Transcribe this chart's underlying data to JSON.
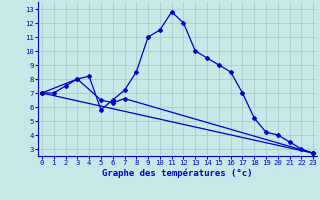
{
  "title": "Graphe des températures (°c)",
  "bg_color": "#c8e8e8",
  "grid_color": "#a8cccc",
  "line_color": "#0000cc",
  "x_ticks": [
    0,
    1,
    2,
    3,
    4,
    5,
    6,
    7,
    8,
    9,
    10,
    11,
    12,
    13,
    14,
    15,
    16,
    17,
    18,
    19,
    20,
    21,
    22,
    23
  ],
  "y_ticks": [
    3,
    4,
    5,
    6,
    7,
    8,
    9,
    10,
    11,
    12,
    13
  ],
  "xlim": [
    -0.3,
    23.3
  ],
  "ylim": [
    2.5,
    13.5
  ],
  "curve1_x": [
    0,
    1,
    2,
    3,
    4,
    5,
    6,
    7,
    8,
    9,
    10,
    11,
    12,
    13,
    14,
    15,
    16,
    17,
    18,
    19,
    20,
    21,
    22,
    23
  ],
  "curve1_y": [
    7.0,
    7.0,
    7.5,
    8.0,
    8.2,
    5.8,
    6.5,
    7.2,
    8.5,
    11.0,
    11.5,
    12.8,
    12.0,
    10.0,
    9.5,
    9.0,
    8.5,
    7.0,
    5.2,
    4.2,
    4.0,
    3.5,
    3.0,
    2.7
  ],
  "curve2_x": [
    0,
    23
  ],
  "curve2_y": [
    7.0,
    2.7
  ],
  "curve3_x": [
    0,
    3,
    5,
    6,
    7,
    23
  ],
  "curve3_y": [
    7.0,
    8.0,
    6.5,
    6.3,
    6.6,
    2.7
  ],
  "marker_style": "D",
  "markersize": 2.0,
  "linewidth": 0.9,
  "tick_fontsize": 5.2,
  "xlabel_fontsize": 6.5
}
